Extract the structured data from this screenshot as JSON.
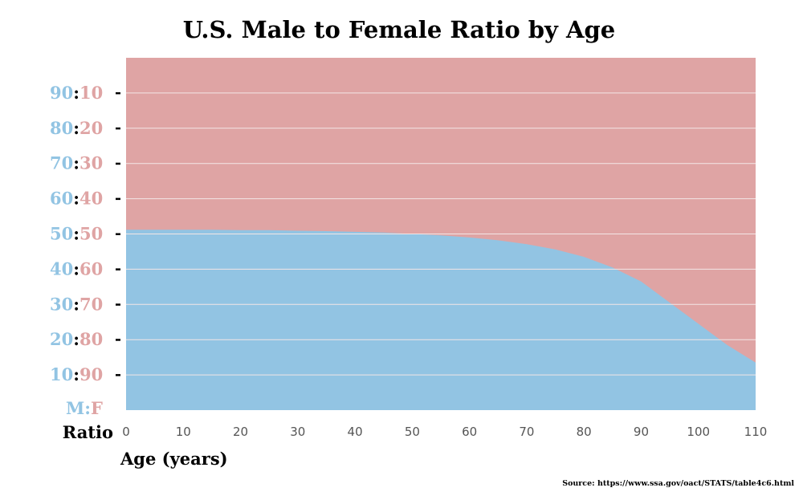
{
  "colors": {
    "male": "#92c4e3",
    "female": "#dfa4a4",
    "colon": "#000000",
    "grid": "#f3e6e6"
  },
  "chart_data": {
    "type": "area",
    "title": "U.S. Male to Female Ratio by Age",
    "xlabel": "Age (years)",
    "ylabel": "Ratio",
    "xlim": [
      0,
      110
    ],
    "ylim": [
      0,
      100
    ],
    "x_ticks": [
      "0",
      "10",
      "20",
      "30",
      "40",
      "50",
      "60",
      "70",
      "80",
      "90",
      "100",
      "110"
    ],
    "y_ticks": [
      {
        "male": "90",
        "female": "10",
        "value": 90
      },
      {
        "male": "80",
        "female": "20",
        "value": 80
      },
      {
        "male": "70",
        "female": "30",
        "value": 70
      },
      {
        "male": "60",
        "female": "40",
        "value": 60
      },
      {
        "male": "50",
        "female": "50",
        "value": 50
      },
      {
        "male": "40",
        "female": "60",
        "value": 40
      },
      {
        "male": "30",
        "female": "70",
        "value": 30
      },
      {
        "male": "20",
        "female": "80",
        "value": 20
      },
      {
        "male": "10",
        "female": "90",
        "value": 10
      }
    ],
    "baseline_label": {
      "male": "M",
      "female": "F"
    },
    "grid": true,
    "series": [
      {
        "x": [
          0,
          5,
          10,
          15,
          20,
          25,
          30,
          35,
          40,
          45,
          50,
          55,
          60,
          65,
          70,
          75,
          80,
          85,
          90,
          95,
          100,
          105,
          110
        ],
        "values": [
          51.2,
          51.2,
          51.2,
          51.2,
          51.1,
          51.1,
          50.9,
          50.8,
          50.6,
          50.4,
          50.0,
          49.6,
          49.0,
          48.2,
          47.1,
          45.6,
          43.5,
          40.5,
          36.5,
          30.5,
          24.5,
          18.5,
          13.5
        ]
      }
    ],
    "source": "Source: https://www.ssa.gov/oact/STATS/table4c6.html"
  }
}
